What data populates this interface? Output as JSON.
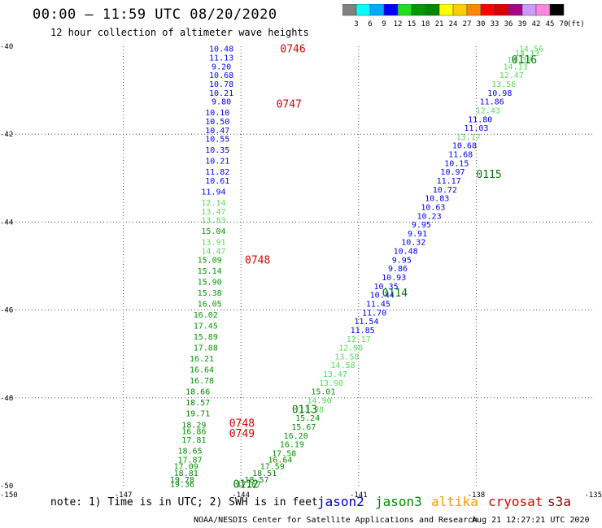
{
  "header": {
    "title": "00:00 – 11:59 UTC 08/20/2020",
    "subtitle": "12 hour collection of altimeter wave heights"
  },
  "colorbar": {
    "labels": [
      "3",
      "6",
      "9",
      "12",
      "15",
      "18",
      "21",
      "24",
      "27",
      "30",
      "33",
      "36",
      "39",
      "42",
      "45",
      "70"
    ],
    "unit": "(ft)",
    "colors": [
      "#808080",
      "#00ffff",
      "#00aaff",
      "#0000ff",
      "#22dd22",
      "#009900",
      "#008800",
      "#ffff00",
      "#ffcc00",
      "#ff8800",
      "#ff0000",
      "#dd0000",
      "#aa0088",
      "#cc99ff",
      "#ff88dd",
      "#000000"
    ]
  },
  "footer": {
    "note": "note: 1) Time is in UTC; 2) SWH is in feet",
    "satellites": [
      {
        "name": "jason2",
        "color": "#0000cc"
      },
      {
        "name": "jason3",
        "color": "#008800"
      },
      {
        "name": "altika",
        "color": "#ff9900"
      },
      {
        "name": "cryosat",
        "color": "#dd0000"
      },
      {
        "name": "s3a",
        "color": "#880000"
      }
    ],
    "credit": "NOAA/NESDIS Center for Satellite Applications and Research",
    "timestamp": "Aug 21 12:27:21 UTC 2020"
  },
  "chart_data": {
    "type": "scatter",
    "xlim": [
      -150,
      -135
    ],
    "ylim": [
      -50,
      -40
    ],
    "x_ticks": [
      "-150",
      "-147",
      "-144",
      "-141",
      "-138",
      "-135"
    ],
    "y_ticks": [
      "-40",
      "-42",
      "-44",
      "-46",
      "-48",
      "-50"
    ],
    "x_tick_values": [
      -150,
      -147,
      -144,
      -141,
      -138,
      -135
    ],
    "y_tick_values": [
      -40,
      -42,
      -44,
      -46,
      -48,
      -50
    ],
    "grid": true,
    "track_labels": [
      {
        "text": "0746",
        "lon": -143.0,
        "lat": -40.05,
        "color": "#dd0000"
      },
      {
        "text": "0747",
        "lon": -143.1,
        "lat": -41.3,
        "color": "#dd0000"
      },
      {
        "text": "0748",
        "lon": -143.9,
        "lat": -44.85,
        "color": "#dd0000"
      },
      {
        "text": "0748",
        "lon": -144.3,
        "lat": -48.57,
        "color": "#dd0000"
      },
      {
        "text": "0749",
        "lon": -144.3,
        "lat": -48.8,
        "color": "#dd0000"
      },
      {
        "text": "0116",
        "lon": -137.1,
        "lat": -40.3,
        "color": "#007700"
      },
      {
        "text": "0115",
        "lon": -138.0,
        "lat": -42.9,
        "color": "#007700"
      },
      {
        "text": "0114",
        "lon": -140.4,
        "lat": -45.6,
        "color": "#007700"
      },
      {
        "text": "0113",
        "lon": -142.7,
        "lat": -48.25,
        "color": "#007700"
      },
      {
        "text": "0112",
        "lon": -144.2,
        "lat": -49.95,
        "color": "#007700"
      }
    ],
    "series": [
      {
        "name": "0746-0749",
        "color_by_value": true,
        "points": [
          {
            "lon": -144.5,
            "lat": -40.05,
            "v": "10.48"
          },
          {
            "lon": -144.5,
            "lat": -40.25,
            "v": "11.13"
          },
          {
            "lon": -144.5,
            "lat": -40.45,
            "v": "9.20"
          },
          {
            "lon": -144.5,
            "lat": -40.65,
            "v": "10.68"
          },
          {
            "lon": -144.5,
            "lat": -40.85,
            "v": "10.78"
          },
          {
            "lon": -144.5,
            "lat": -41.05,
            "v": "10.21"
          },
          {
            "lon": -144.5,
            "lat": -41.25,
            "v": "9.80"
          },
          {
            "lon": -144.6,
            "lat": -41.5,
            "v": "10.10"
          },
          {
            "lon": -144.6,
            "lat": -41.7,
            "v": "10.50"
          },
          {
            "lon": -144.6,
            "lat": -41.9,
            "v": "10.47"
          },
          {
            "lon": -144.6,
            "lat": -42.1,
            "v": "10.55"
          },
          {
            "lon": -144.6,
            "lat": -42.35,
            "v": "10.35"
          },
          {
            "lon": -144.6,
            "lat": -42.6,
            "v": "10.21"
          },
          {
            "lon": -144.6,
            "lat": -42.85,
            "v": "11.82"
          },
          {
            "lon": -144.6,
            "lat": -43.05,
            "v": "10.61"
          },
          {
            "lon": -144.7,
            "lat": -43.3,
            "v": "11.94"
          },
          {
            "lon": -144.7,
            "lat": -43.55,
            "v": "12.14"
          },
          {
            "lon": -144.7,
            "lat": -43.75,
            "v": "13.47"
          },
          {
            "lon": -144.7,
            "lat": -43.95,
            "v": "13.83"
          },
          {
            "lon": -144.7,
            "lat": -44.2,
            "v": "15.04"
          },
          {
            "lon": -144.7,
            "lat": -44.45,
            "v": "13.91"
          },
          {
            "lon": -144.7,
            "lat": -44.65,
            "v": "14.47"
          },
          {
            "lon": -144.8,
            "lat": -44.85,
            "v": "15.09"
          },
          {
            "lon": -144.8,
            "lat": -45.1,
            "v": "15.14"
          },
          {
            "lon": -144.8,
            "lat": -45.35,
            "v": "15.90"
          },
          {
            "lon": -144.8,
            "lat": -45.6,
            "v": "15.38"
          },
          {
            "lon": -144.8,
            "lat": -45.85,
            "v": "16.05"
          },
          {
            "lon": -144.9,
            "lat": -46.1,
            "v": "16.02"
          },
          {
            "lon": -144.9,
            "lat": -46.35,
            "v": "17.45"
          },
          {
            "lon": -144.9,
            "lat": -46.6,
            "v": "15.89"
          },
          {
            "lon": -144.9,
            "lat": -46.85,
            "v": "17.88"
          },
          {
            "lon": -145.0,
            "lat": -47.1,
            "v": "16.21"
          },
          {
            "lon": -145.0,
            "lat": -47.35,
            "v": "16.64"
          },
          {
            "lon": -145.0,
            "lat": -47.6,
            "v": "16.78"
          },
          {
            "lon": -145.1,
            "lat": -47.85,
            "v": "18.66"
          },
          {
            "lon": -145.1,
            "lat": -48.1,
            "v": "18.57"
          },
          {
            "lon": -145.1,
            "lat": -48.35,
            "v": "19.71"
          },
          {
            "lon": -145.2,
            "lat": -48.6,
            "v": "18.29"
          },
          {
            "lon": -145.2,
            "lat": -48.75,
            "v": "16.86"
          },
          {
            "lon": -145.2,
            "lat": -48.95,
            "v": "17.81"
          },
          {
            "lon": -145.3,
            "lat": -49.2,
            "v": "18.65"
          },
          {
            "lon": -145.3,
            "lat": -49.4,
            "v": "17.87"
          },
          {
            "lon": -145.4,
            "lat": -49.55,
            "v": "17.09"
          },
          {
            "lon": -145.4,
            "lat": -49.7,
            "v": "18.81"
          },
          {
            "lon": -145.5,
            "lat": -49.85,
            "v": "19.78"
          },
          {
            "lon": -145.5,
            "lat": -49.95,
            "v": "19.36"
          }
        ]
      },
      {
        "name": "0112-0116",
        "color_by_value": true,
        "points": [
          {
            "lon": -136.6,
            "lat": -40.05,
            "v": "14.56"
          },
          {
            "lon": -136.7,
            "lat": -40.15,
            "v": "14.13"
          },
          {
            "lon": -136.9,
            "lat": -40.3,
            "v": "14.39"
          },
          {
            "lon": -137.0,
            "lat": -40.45,
            "v": "14.13"
          },
          {
            "lon": -137.1,
            "lat": -40.65,
            "v": "12.47"
          },
          {
            "lon": -137.3,
            "lat": -40.85,
            "v": "13.56"
          },
          {
            "lon": -137.4,
            "lat": -41.05,
            "v": "10.98"
          },
          {
            "lon": -137.6,
            "lat": -41.25,
            "v": "11.86"
          },
          {
            "lon": -137.7,
            "lat": -41.45,
            "v": "12.43"
          },
          {
            "lon": -137.9,
            "lat": -41.65,
            "v": "11.80"
          },
          {
            "lon": -138.0,
            "lat": -41.85,
            "v": "11.03"
          },
          {
            "lon": -138.2,
            "lat": -42.05,
            "v": "13.17"
          },
          {
            "lon": -138.3,
            "lat": -42.25,
            "v": "10.68"
          },
          {
            "lon": -138.4,
            "lat": -42.45,
            "v": "11.68"
          },
          {
            "lon": -138.5,
            "lat": -42.65,
            "v": "10.15"
          },
          {
            "lon": -138.6,
            "lat": -42.85,
            "v": "10.97"
          },
          {
            "lon": -138.7,
            "lat": -43.05,
            "v": "11.17"
          },
          {
            "lon": -138.8,
            "lat": -43.25,
            "v": "10.72"
          },
          {
            "lon": -139.0,
            "lat": -43.45,
            "v": "10.83"
          },
          {
            "lon": -139.1,
            "lat": -43.65,
            "v": "10.63"
          },
          {
            "lon": -139.2,
            "lat": -43.85,
            "v": "10.23"
          },
          {
            "lon": -139.4,
            "lat": -44.05,
            "v": "9.95"
          },
          {
            "lon": -139.5,
            "lat": -44.25,
            "v": "9.91"
          },
          {
            "lon": -139.6,
            "lat": -44.45,
            "v": "10.32"
          },
          {
            "lon": -139.8,
            "lat": -44.65,
            "v": "10.48"
          },
          {
            "lon": -139.9,
            "lat": -44.85,
            "v": "9.95"
          },
          {
            "lon": -140.0,
            "lat": -45.05,
            "v": "9.86"
          },
          {
            "lon": -140.1,
            "lat": -45.25,
            "v": "10.93"
          },
          {
            "lon": -140.3,
            "lat": -45.45,
            "v": "10.35"
          },
          {
            "lon": -140.4,
            "lat": -45.65,
            "v": "10.44"
          },
          {
            "lon": -140.5,
            "lat": -45.85,
            "v": "11.45"
          },
          {
            "lon": -140.6,
            "lat": -46.05,
            "v": "11.70"
          },
          {
            "lon": -140.8,
            "lat": -46.25,
            "v": "11.54"
          },
          {
            "lon": -140.9,
            "lat": -46.45,
            "v": "11.85"
          },
          {
            "lon": -141.0,
            "lat": -46.65,
            "v": "12.17"
          },
          {
            "lon": -141.2,
            "lat": -46.85,
            "v": "12.98"
          },
          {
            "lon": -141.3,
            "lat": -47.05,
            "v": "13.58"
          },
          {
            "lon": -141.4,
            "lat": -47.25,
            "v": "14.58"
          },
          {
            "lon": -141.6,
            "lat": -47.45,
            "v": "13.47"
          },
          {
            "lon": -141.7,
            "lat": -47.65,
            "v": "13.90"
          },
          {
            "lon": -141.9,
            "lat": -47.85,
            "v": "15.01"
          },
          {
            "lon": -142.0,
            "lat": -48.05,
            "v": "14.90"
          },
          {
            "lon": -142.2,
            "lat": -48.25,
            "v": "13.98"
          },
          {
            "lon": -142.3,
            "lat": -48.45,
            "v": "15.24"
          },
          {
            "lon": -142.4,
            "lat": -48.65,
            "v": "15.67"
          },
          {
            "lon": -142.6,
            "lat": -48.85,
            "v": "16.20"
          },
          {
            "lon": -142.7,
            "lat": -49.05,
            "v": "16.19"
          },
          {
            "lon": -142.9,
            "lat": -49.25,
            "v": "17.58"
          },
          {
            "lon": -143.0,
            "lat": -49.4,
            "v": "16.64"
          },
          {
            "lon": -143.2,
            "lat": -49.55,
            "v": "17.59"
          },
          {
            "lon": -143.4,
            "lat": -49.7,
            "v": "18.51"
          },
          {
            "lon": -143.6,
            "lat": -49.85,
            "v": "18.57"
          },
          {
            "lon": -143.8,
            "lat": -49.95,
            "v": "17.67"
          }
        ]
      }
    ]
  }
}
